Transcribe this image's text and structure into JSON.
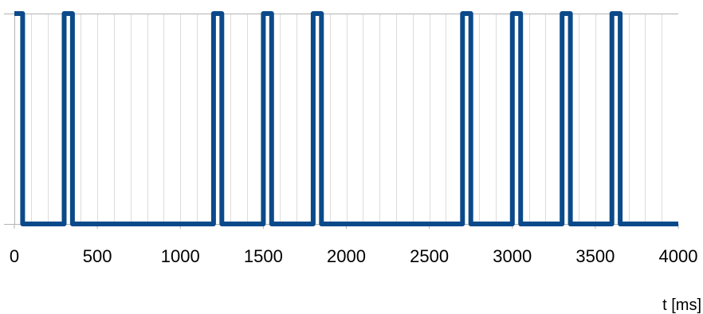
{
  "chart_data": {
    "type": "line",
    "title": "",
    "xlabel": "t [ms]",
    "ylabel": "",
    "xlim": [
      0,
      4000
    ],
    "ylim": [
      0,
      1
    ],
    "x_ticks": [
      0,
      500,
      1000,
      1500,
      2000,
      2500,
      3000,
      3500,
      4000
    ],
    "x_tick_labels": [
      "0",
      "500",
      "1000",
      "1500",
      "2000",
      "2500",
      "3000",
      "3500",
      "4000"
    ],
    "minor_grid_step": 100,
    "grid": true,
    "legend": "none",
    "series": [
      {
        "color": "#0b4a8a",
        "points": [
          [
            0,
            1
          ],
          [
            50,
            1
          ],
          [
            50,
            0
          ],
          [
            300,
            0
          ],
          [
            300,
            1
          ],
          [
            350,
            1
          ],
          [
            350,
            0
          ],
          [
            1200,
            0
          ],
          [
            1200,
            1
          ],
          [
            1250,
            1
          ],
          [
            1250,
            0
          ],
          [
            1500,
            0
          ],
          [
            1500,
            1
          ],
          [
            1550,
            1
          ],
          [
            1550,
            0
          ],
          [
            1800,
            0
          ],
          [
            1800,
            1
          ],
          [
            1850,
            1
          ],
          [
            1850,
            0
          ],
          [
            2700,
            0
          ],
          [
            2700,
            1
          ],
          [
            2750,
            1
          ],
          [
            2750,
            0
          ],
          [
            3000,
            0
          ],
          [
            3000,
            1
          ],
          [
            3050,
            1
          ],
          [
            3050,
            0
          ],
          [
            3300,
            0
          ],
          [
            3300,
            1
          ],
          [
            3350,
            1
          ],
          [
            3350,
            0
          ],
          [
            3600,
            0
          ],
          [
            3600,
            1
          ],
          [
            3650,
            1
          ],
          [
            3650,
            0
          ],
          [
            4000,
            0
          ]
        ]
      }
    ]
  }
}
